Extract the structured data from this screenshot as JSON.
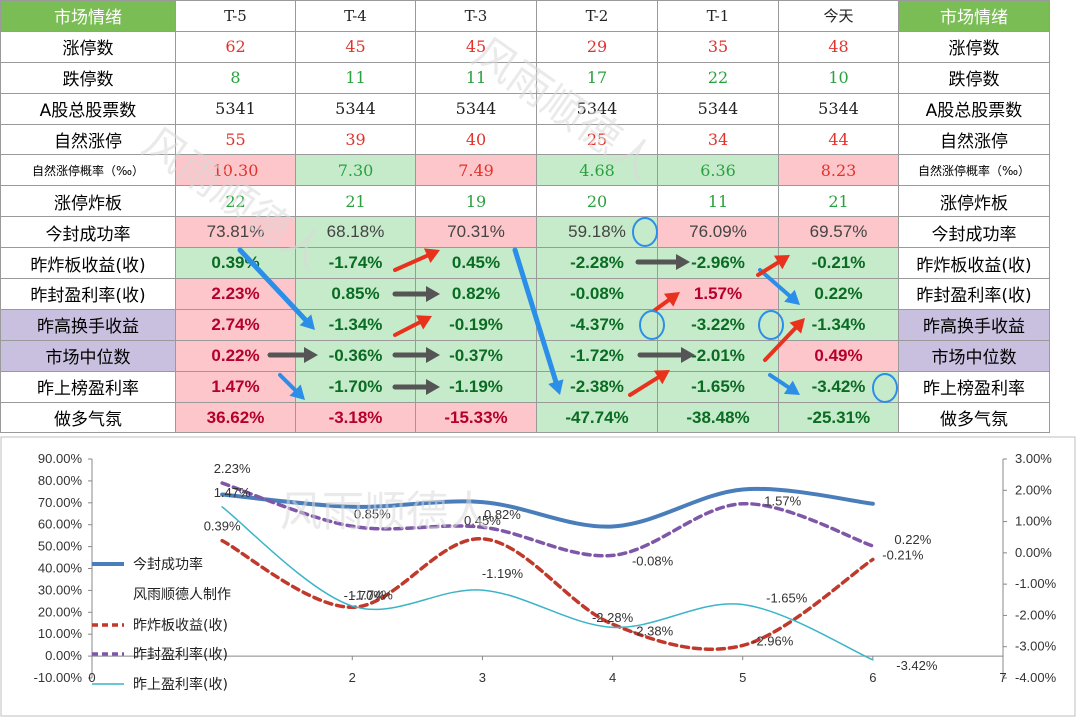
{
  "table": {
    "header_label": "市场情绪",
    "header_label_right": "市场情绪",
    "days": [
      "T-5",
      "T-4",
      "T-3",
      "T-2",
      "T-1",
      "今天"
    ],
    "rows": [
      {
        "label": "涨停数",
        "values": [
          "62",
          "45",
          "45",
          "29",
          "35",
          "48"
        ],
        "color": "red"
      },
      {
        "label": "跌停数",
        "values": [
          "8",
          "11",
          "11",
          "17",
          "22",
          "10"
        ],
        "color": "green"
      },
      {
        "label": "A股总股票数",
        "values": [
          "5341",
          "5344",
          "5344",
          "5344",
          "5344",
          "5344"
        ],
        "color": "black"
      },
      {
        "label": "自然涨停",
        "values": [
          "55",
          "39",
          "40",
          "25",
          "34",
          "44"
        ],
        "color": "red"
      },
      {
        "label": "自然涨停概率（‰）",
        "values": [
          "10.30",
          "7.30",
          "7.49",
          "4.68",
          "6.36",
          "8.23"
        ],
        "color": "bg",
        "small": true,
        "bgs": [
          "pink",
          "green",
          "pink",
          "green",
          "green",
          "pink"
        ]
      },
      {
        "label": "涨停炸板",
        "values": [
          "22",
          "21",
          "19",
          "20",
          "11",
          "21"
        ],
        "color": "green"
      },
      {
        "label": "今封成功率",
        "values": [
          "73.81%",
          "68.18%",
          "70.31%",
          "59.18%",
          "76.09%",
          "69.57%"
        ],
        "color": "pctplain",
        "bgs": [
          "pink",
          "green",
          "pink",
          "green",
          "pink",
          "pink"
        ]
      },
      {
        "label": "昨炸板收益(收)",
        "values": [
          "0.39%",
          "-1.74%",
          "0.45%",
          "-2.28%",
          "-2.96%",
          "-0.21%"
        ],
        "color": "pct",
        "bgs": [
          "green",
          "green",
          "green",
          "green",
          "green",
          "green"
        ]
      },
      {
        "label": "昨封盈利率(收)",
        "values": [
          "2.23%",
          "0.85%",
          "0.82%",
          "-0.08%",
          "1.57%",
          "0.22%"
        ],
        "color": "pct",
        "bgs": [
          "pink",
          "green",
          "green",
          "green",
          "pink",
          "green"
        ]
      },
      {
        "label": "昨高换手收益",
        "values": [
          "2.74%",
          "-1.34%",
          "-0.19%",
          "-4.37%",
          "-3.22%",
          "-1.34%"
        ],
        "color": "pct",
        "purple": true,
        "bgs": [
          "pink",
          "green",
          "green",
          "green",
          "green",
          "green"
        ]
      },
      {
        "label": "市场中位数",
        "values": [
          "0.22%",
          "-0.36%",
          "-0.37%",
          "-1.72%",
          "-2.01%",
          "0.49%"
        ],
        "color": "pct",
        "purple": true,
        "bgs": [
          "pink",
          "green",
          "green",
          "green",
          "green",
          "pink"
        ]
      },
      {
        "label": "昨上榜盈利率",
        "values": [
          "1.47%",
          "-1.70%",
          "-1.19%",
          "-2.38%",
          "-1.65%",
          "-3.42%"
        ],
        "color": "pct",
        "bgs": [
          "pink",
          "green",
          "green",
          "green",
          "green",
          "green"
        ]
      },
      {
        "label": "做多气氛",
        "values": [
          "36.62%",
          "-3.18%",
          "-15.33%",
          "-47.74%",
          "-38.48%",
          "-25.31%"
        ],
        "color": "pct",
        "bgs": [
          "pink",
          "pink",
          "pink",
          "green",
          "green",
          "green"
        ]
      }
    ]
  },
  "watermark": "风雨顺德人",
  "colors": {
    "header_green": "#7bbd55",
    "pink": "#fcc6cb",
    "green": "#c6ebcb",
    "purple": "#c9bfdf",
    "arrow_red": "#e8321e",
    "arrow_blue": "#2b8ee8",
    "arrow_dark": "#555555"
  },
  "chart_data": {
    "type": "line",
    "x": [
      1,
      2,
      3,
      4,
      5,
      6
    ],
    "xlim": [
      0,
      7
    ],
    "xticks": [
      "0",
      "2",
      "3",
      "4",
      "5",
      "6",
      "7"
    ],
    "ylim_left": [
      -10,
      90
    ],
    "yticks_left": [
      "90.00%",
      "80.00%",
      "70.00%",
      "60.00%",
      "50.00%",
      "40.00%",
      "30.00%",
      "20.00%",
      "10.00%",
      "0.00%",
      "-10.00%"
    ],
    "ylim_right": [
      -4,
      3
    ],
    "yticks_right": [
      "3.00%",
      "2.00%",
      "1.00%",
      "0.00%",
      "-1.00%",
      "-2.00%",
      "-3.00%",
      "-4.00%"
    ],
    "series": [
      {
        "name": "今封成功率",
        "axis": "left",
        "color": "#4a7ebb",
        "style": "solid-thick",
        "values": [
          73.81,
          68.18,
          70.31,
          59.18,
          76.09,
          69.57
        ],
        "labels": []
      },
      {
        "name": "昨炸板收益(收)",
        "axis": "right",
        "color": "#c0392b",
        "style": "dashed",
        "values": [
          0.39,
          -1.74,
          0.45,
          -2.28,
          -2.96,
          -0.21
        ],
        "labels": [
          "0.39%",
          "-1.74%",
          "0.45%",
          "-2.28%",
          "-2.96%",
          "-0.21%"
        ]
      },
      {
        "name": "昨封盈利率(收)",
        "axis": "right",
        "color": "#7e57a8",
        "style": "dashed",
        "values": [
          2.23,
          0.85,
          0.82,
          -0.08,
          1.57,
          0.22
        ],
        "labels": [
          "2.23%",
          "0.85%",
          "0.82%",
          "-0.08%",
          "1.57%",
          "0.22%"
        ]
      },
      {
        "name": "昨上盈利率(收)",
        "axis": "right",
        "color": "#3cb4c8",
        "style": "thin",
        "values": [
          1.47,
          -1.7,
          -1.19,
          -2.38,
          -1.65,
          -3.42
        ],
        "labels": [
          "1.47%",
          "-1.70%",
          "-1.19%",
          "-2.38%",
          "-1.65%",
          "-3.42%"
        ]
      }
    ],
    "legend_extra_text": "风雨顺德人制作",
    "legend_position": "left"
  }
}
